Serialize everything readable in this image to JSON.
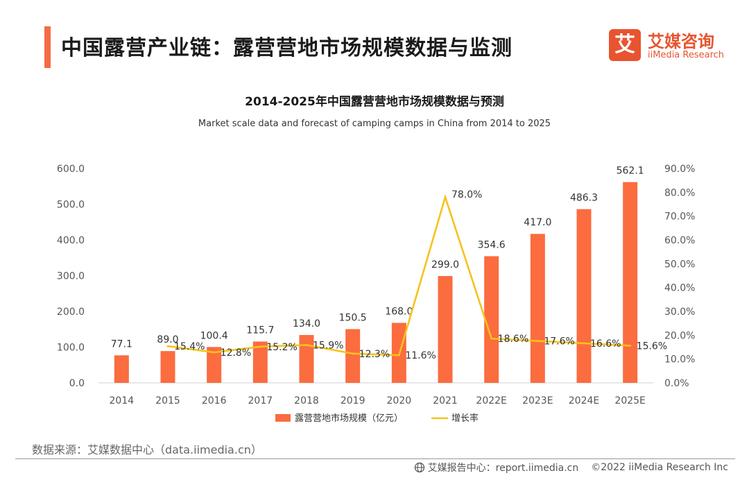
{
  "header": {
    "title": "中国露营产业链：露营营地市场规模数据与监测"
  },
  "logo": {
    "mark": "艾",
    "name_cn": "艾媒咨询",
    "name_en": "iiMedia Research"
  },
  "chart_data": {
    "type": "bar+line",
    "title": "2014-2025年中国露营营地市场规模数据与预测",
    "subtitle": "Market scale data and forecast of camping camps in China from 2014 to 2025",
    "categories": [
      "2014",
      "2015",
      "2016",
      "2017",
      "2018",
      "2019",
      "2020",
      "2021",
      "2022E",
      "2023E",
      "2024E",
      "2025E"
    ],
    "series": [
      {
        "name": "露营营地市场规模（亿元）",
        "kind": "bar",
        "axis": "left",
        "color": "#fb6c3f",
        "values": [
          77.1,
          89.0,
          100.4,
          115.7,
          134.0,
          150.5,
          168.0,
          299.0,
          354.6,
          417.0,
          486.3,
          562.1
        ],
        "labels": [
          "77.1",
          "89.0",
          "100.4",
          "115.7",
          "134.0",
          "150.5",
          "168.0",
          "299.0",
          "354.6",
          "417.0",
          "486.3",
          "562.1"
        ]
      },
      {
        "name": "增长率",
        "kind": "line",
        "axis": "right",
        "color": "#f7c21c",
        "values": [
          null,
          15.4,
          12.8,
          15.2,
          15.9,
          12.3,
          11.6,
          78.0,
          18.6,
          17.6,
          16.6,
          15.6
        ],
        "labels": [
          "",
          "15.4%",
          "12.8%",
          "15.2%",
          "15.9%",
          "12.3%",
          "11.6%",
          "78.0%",
          "18.6%",
          "17.6%",
          "16.6%",
          "15.6%"
        ]
      }
    ],
    "y_left": {
      "min": 0,
      "max": 600,
      "ticks": [
        "0.0",
        "100.0",
        "200.0",
        "300.0",
        "400.0",
        "500.0",
        "600.0"
      ]
    },
    "y_right": {
      "min": 0,
      "max": 90,
      "ticks": [
        "0.0%",
        "10.0%",
        "20.0%",
        "30.0%",
        "40.0%",
        "50.0%",
        "60.0%",
        "70.0%",
        "80.0%",
        "90.0%"
      ]
    },
    "legend": [
      "露营营地市场规模（亿元）",
      "增长率"
    ],
    "legend_position": "bottom",
    "grid": false
  },
  "footer": {
    "source": "数据来源：艾媒数据中心（data.iimedia.cn）",
    "report_site": "艾媒报告中心：report.iimedia.cn",
    "copyright": "©2022  iiMedia Research  Inc"
  }
}
